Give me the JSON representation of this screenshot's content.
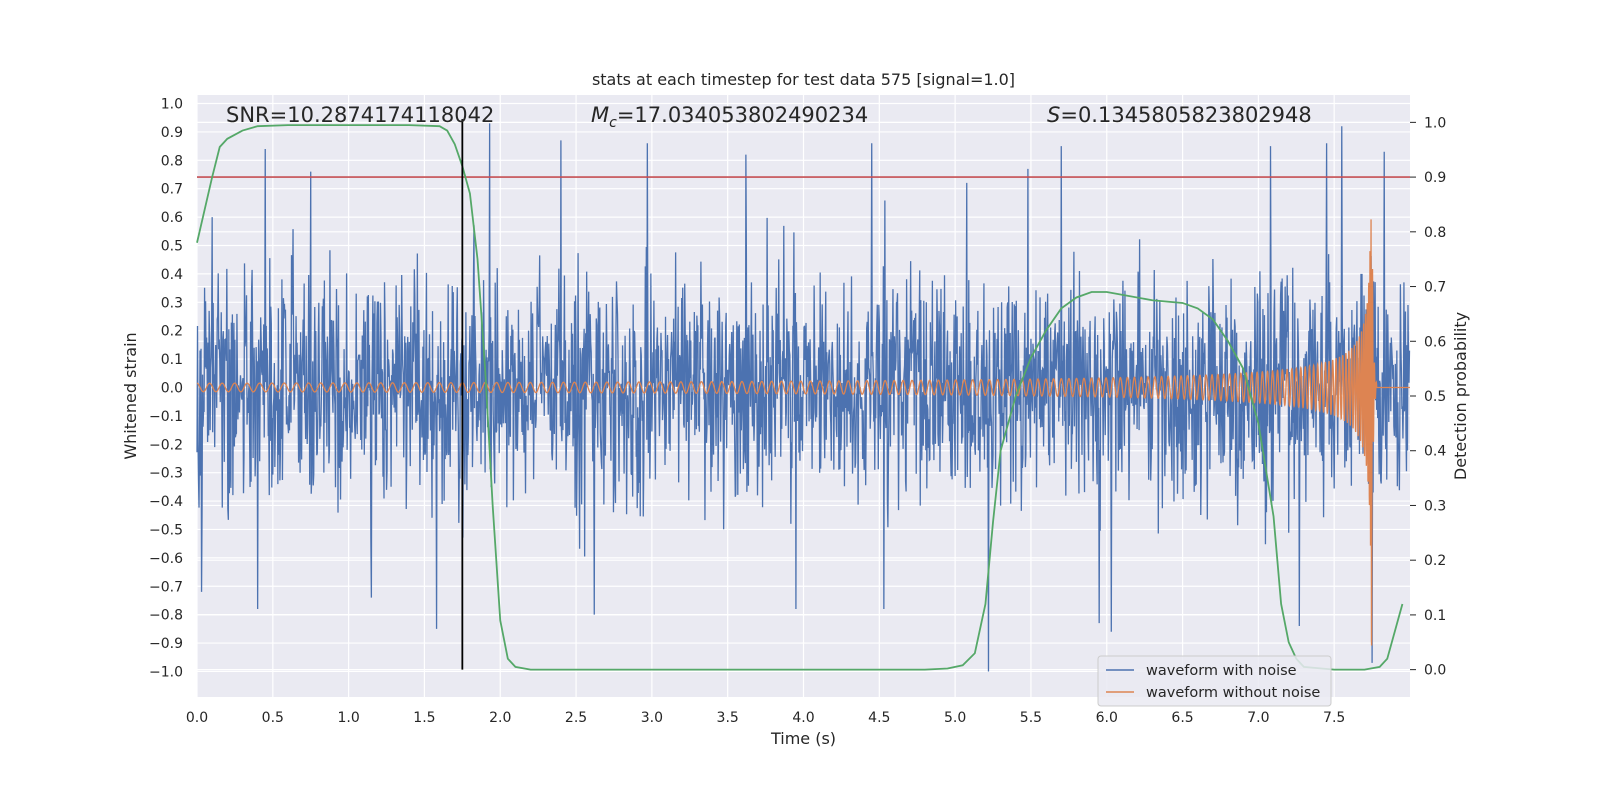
{
  "chart_data": {
    "type": "line",
    "title": "stats at each timestep for test data 575 [signal=1.0]",
    "xlabel": "Time (s)",
    "ylabel": "Whitened strain",
    "ylabel_right": "Detection probability",
    "xlim": [
      0.0,
      8.0
    ],
    "ylim": [
      -1.09,
      1.03
    ],
    "ylim_right": [
      -0.05,
      1.05
    ],
    "x_ticks": [
      "0.0",
      "0.5",
      "1.0",
      "1.5",
      "2.0",
      "2.5",
      "3.0",
      "3.5",
      "4.0",
      "4.5",
      "5.0",
      "5.5",
      "6.0",
      "6.5",
      "7.0",
      "7.5"
    ],
    "y_ticks": [
      "1.0",
      "0.9",
      "0.8",
      "0.7",
      "0.6",
      "0.5",
      "0.4",
      "0.3",
      "0.2",
      "0.1",
      "0.0",
      "-0.1",
      "-0.2",
      "-0.3",
      "-0.4",
      "-0.5",
      "-0.6",
      "-0.7",
      "-0.8",
      "-0.9",
      "-1.0"
    ],
    "y_ticks_right": [
      "1.0",
      "0.9",
      "0.8",
      "0.7",
      "0.6",
      "0.5",
      "0.4",
      "0.3",
      "0.2",
      "0.1",
      "0.0"
    ],
    "annotations": {
      "snr": "SNR=10.2874174118042",
      "mc_symbol": "M",
      "mc_sub": "c",
      "mc_value": "=17.034053802490234",
      "s_symbol": "S",
      "s_value": "=0.1345805823802948"
    },
    "threshold": {
      "y_right": 0.9,
      "color": "#c44e52"
    },
    "marker_line": {
      "x": 1.75,
      "color": "#000000"
    },
    "series": [
      {
        "name": "waveform with noise",
        "color": "#4c72b0",
        "description": "noisy whitened strain, approx amplitude 0.3-0.5, peaks to about 0.93 and -1.0",
        "peaks": [
          [
            0.03,
            -0.72
          ],
          [
            0.1,
            0.6
          ],
          [
            0.45,
            0.84
          ],
          [
            0.4,
            -0.78
          ],
          [
            0.75,
            0.76
          ],
          [
            1.15,
            -0.74
          ],
          [
            1.58,
            -0.85
          ],
          [
            1.93,
            0.93
          ],
          [
            2.4,
            0.87
          ],
          [
            2.62,
            -0.8
          ],
          [
            2.97,
            0.86
          ],
          [
            3.62,
            0.82
          ],
          [
            3.95,
            -0.78
          ],
          [
            4.45,
            0.86
          ],
          [
            4.53,
            -0.78
          ],
          [
            5.22,
            -1.0
          ],
          [
            5.48,
            0.77
          ],
          [
            5.7,
            0.85
          ],
          [
            5.95,
            -0.83
          ],
          [
            6.03,
            -0.86
          ],
          [
            7.08,
            0.85
          ],
          [
            7.27,
            -0.84
          ],
          [
            7.45,
            0.86
          ],
          [
            7.55,
            0.92
          ],
          [
            7.75,
            -0.97
          ],
          [
            7.83,
            0.83
          ]
        ]
      },
      {
        "name": "waveform without noise",
        "color": "#dd8452",
        "description": "chirp signal amplitude ~0.015 growing to ~0.6 at merger t=7.75 s",
        "merger_time": 7.75,
        "amplitude_start": 0.015,
        "amplitude_peak": 0.6,
        "freq_start_hz": 12
      },
      {
        "name": "detection probability",
        "color": "#55a868",
        "axis": "right",
        "x": [
          0.0,
          0.05,
          0.1,
          0.15,
          0.2,
          0.3,
          0.4,
          0.6,
          1.0,
          1.4,
          1.6,
          1.65,
          1.7,
          1.75,
          1.8,
          1.85,
          1.9,
          1.95,
          2.0,
          2.05,
          2.1,
          2.2,
          2.5,
          3.0,
          4.0,
          4.8,
          4.95,
          5.05,
          5.13,
          5.2,
          5.25,
          5.3,
          5.4,
          5.5,
          5.6,
          5.7,
          5.8,
          5.9,
          6.0,
          6.1,
          6.3,
          6.5,
          6.6,
          6.7,
          6.8,
          6.9,
          7.0,
          7.1,
          7.15,
          7.2,
          7.25,
          7.3,
          7.5,
          7.7,
          7.8,
          7.85,
          7.9,
          7.95
        ],
        "y": [
          0.78,
          0.84,
          0.9,
          0.955,
          0.97,
          0.985,
          0.993,
          0.995,
          0.995,
          0.995,
          0.993,
          0.985,
          0.96,
          0.92,
          0.87,
          0.75,
          0.55,
          0.3,
          0.09,
          0.02,
          0.005,
          0.0,
          0.0,
          0.0,
          0.0,
          0.0,
          0.002,
          0.008,
          0.03,
          0.12,
          0.27,
          0.4,
          0.5,
          0.57,
          0.62,
          0.66,
          0.68,
          0.69,
          0.69,
          0.685,
          0.675,
          0.67,
          0.66,
          0.64,
          0.6,
          0.55,
          0.45,
          0.28,
          0.12,
          0.05,
          0.02,
          0.005,
          0.0,
          0.0,
          0.005,
          0.02,
          0.07,
          0.12
        ]
      }
    ],
    "legend": {
      "entries": [
        "waveform with noise",
        "waveform without noise"
      ],
      "position": "lower-right"
    }
  }
}
